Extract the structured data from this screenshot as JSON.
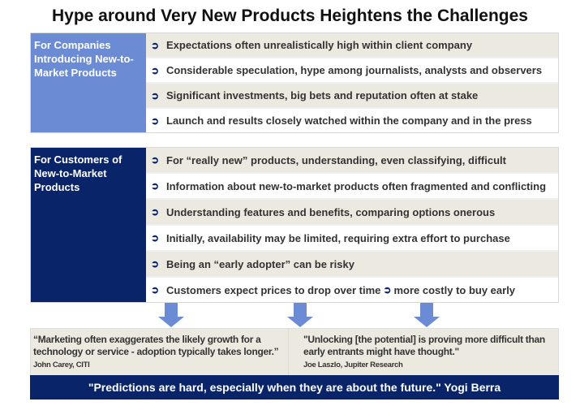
{
  "title": "Hype around Very New Products Heightens the Challenges",
  "companies": {
    "label": "For Companies Introducing New-to-Market Products",
    "color": "#6b8bd4",
    "items": [
      "Expectations often unrealistically high within client company",
      "Considerable speculation, hype among journalists, analysts and observers",
      "Significant investments, big bets and reputation often at stake",
      "Launch and results closely watched within the company and in the press"
    ]
  },
  "customers": {
    "label": "For Customers of New-to-Market Products",
    "color": "#0a2469",
    "items": [
      "For “really new” products, understanding, even classifying, difficult",
      "Information about new-to-market products often fragmented and conflicting",
      "Understanding features and benefits, comparing options onerous",
      "Initially, availability may be limited, requiring extra effort to purchase",
      "Being an “early adopter” can be risky"
    ],
    "last_item_a": "Customers expect prices to drop over time",
    "last_item_b": "more costly to buy early"
  },
  "quotes": [
    {
      "text": "“Marketing often exaggerates the likely growth for a technology or service - adoption typically takes longer.”",
      "who": "John Carey, CITI"
    },
    {
      "text": "\"Unlocking [the potential] is proving more difficult than early entrants might have thought.\"",
      "who": "Joe Laszlo, Jupiter Research"
    }
  ],
  "footer": "\"Predictions are hard, especially when they are about the future.\"  Yogi Berra",
  "bullet_icon": "curved-arrow-bullet"
}
